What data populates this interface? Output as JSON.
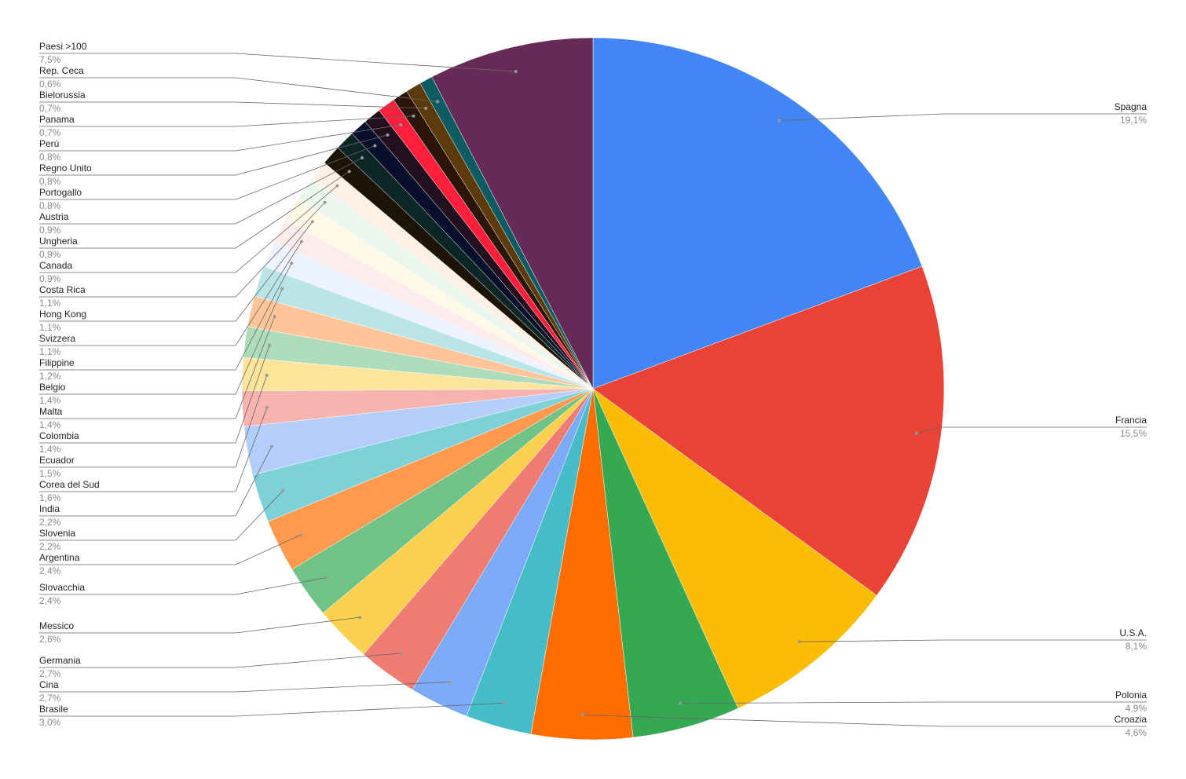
{
  "chart_data": {
    "type": "pie",
    "categories": [
      "Spagna",
      "Francia",
      "U.S.A.",
      "Polonia",
      "Croazia",
      "Brasile",
      "Cina",
      "Germania",
      "Messico",
      "Slovacchia",
      "Argentina",
      "Slovenia",
      "India",
      "Corea del Sud",
      "Ecuador",
      "Colombia",
      "Malta",
      "Belgio",
      "Filippine",
      "Svizzera",
      "Hong Kong",
      "Costa Rica",
      "Canada",
      "Ungheria",
      "Austria",
      "Portogallo",
      "Regno Unito",
      "Perù",
      "Panama",
      "Bielorussia",
      "Rep. Ceca",
      "Paesi >100"
    ],
    "values": [
      19.1,
      15.5,
      8.1,
      4.9,
      4.6,
      3.0,
      2.7,
      2.7,
      2.6,
      2.4,
      2.4,
      2.2,
      2.2,
      1.6,
      1.5,
      1.4,
      1.4,
      1.4,
      1.2,
      1.1,
      1.1,
      1.1,
      0.9,
      0.9,
      0.9,
      0.8,
      0.8,
      0.8,
      0.7,
      0.7,
      0.6,
      7.5
    ],
    "value_labels": [
      "19,1%",
      "15,5%",
      "8,1%",
      "4,9%",
      "4,6%",
      "3,0%",
      "2,7%",
      "2,7%",
      "2,6%",
      "2,4%",
      "2,4%",
      "2,2%",
      "2,2%",
      "1,6%",
      "1,5%",
      "1,4%",
      "1,4%",
      "1,4%",
      "1,2%",
      "1,1%",
      "1,1%",
      "1,1%",
      "0,9%",
      "0,9%",
      "0,9%",
      "0,8%",
      "0,8%",
      "0,8%",
      "0,7%",
      "0,7%",
      "0,6%",
      "7,5%"
    ],
    "colors": [
      "#4285f4",
      "#ea4335",
      "#fbbc04",
      "#34a853",
      "#ff6d01",
      "#46bdc6",
      "#7baaf7",
      "#f07b72",
      "#fcd04f",
      "#71c287",
      "#ff994d",
      "#7ed1d7",
      "#b3cefb",
      "#f7b4ae",
      "#fde49b",
      "#aedcba",
      "#ffc599",
      "#b9e5e8",
      "#ecf2fe",
      "#fdeceb",
      "#fff8e6",
      "#ebf6ee",
      "#fff0e5",
      "#1d1407",
      "#0c2626",
      "#070f2a",
      "#23101f",
      "#ff1f3d",
      "#2a1508",
      "#5c3a0a",
      "#0d5c63",
      "#652a55"
    ]
  }
}
